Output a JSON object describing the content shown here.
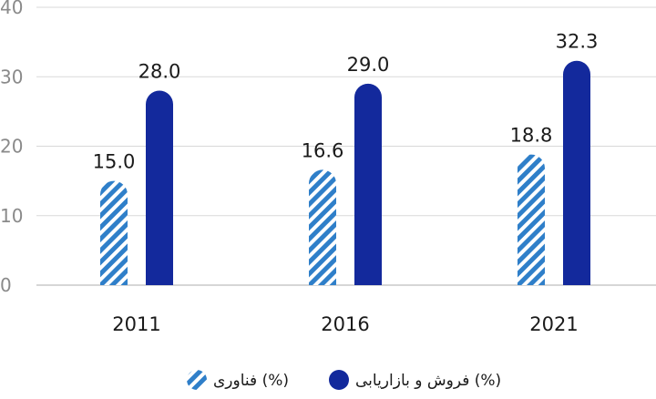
{
  "colors": {
    "accent_dark": "#13299c",
    "accent_light": "#2f7fc9",
    "grid": "#d9d9d9",
    "tick": "#8a8a8a",
    "text": "#1a1a1a"
  },
  "chart_data": {
    "type": "bar",
    "categories": [
      "2011",
      "2016",
      "2021"
    ],
    "series": [
      {
        "name": "فناوری (%)",
        "values": [
          15.0,
          16.6,
          18.8
        ],
        "pattern": "diagonal-hatch",
        "color": "#2f7fc9"
      },
      {
        "name": "فروش و بازاریابی (%)",
        "values": [
          28.0,
          29.0,
          32.3
        ],
        "pattern": "solid",
        "color": "#13299c"
      }
    ],
    "data_labels": [
      [
        "15.0",
        "16.6",
        "18.8"
      ],
      [
        "28.0",
        "29.0",
        "32.3"
      ]
    ],
    "y_ticks": [
      "0",
      "10",
      "20",
      "30",
      "40"
    ],
    "ylim": [
      0,
      40
    ],
    "grid": true,
    "legend_position": "bottom",
    "title": "",
    "xlabel": "",
    "ylabel": ""
  }
}
